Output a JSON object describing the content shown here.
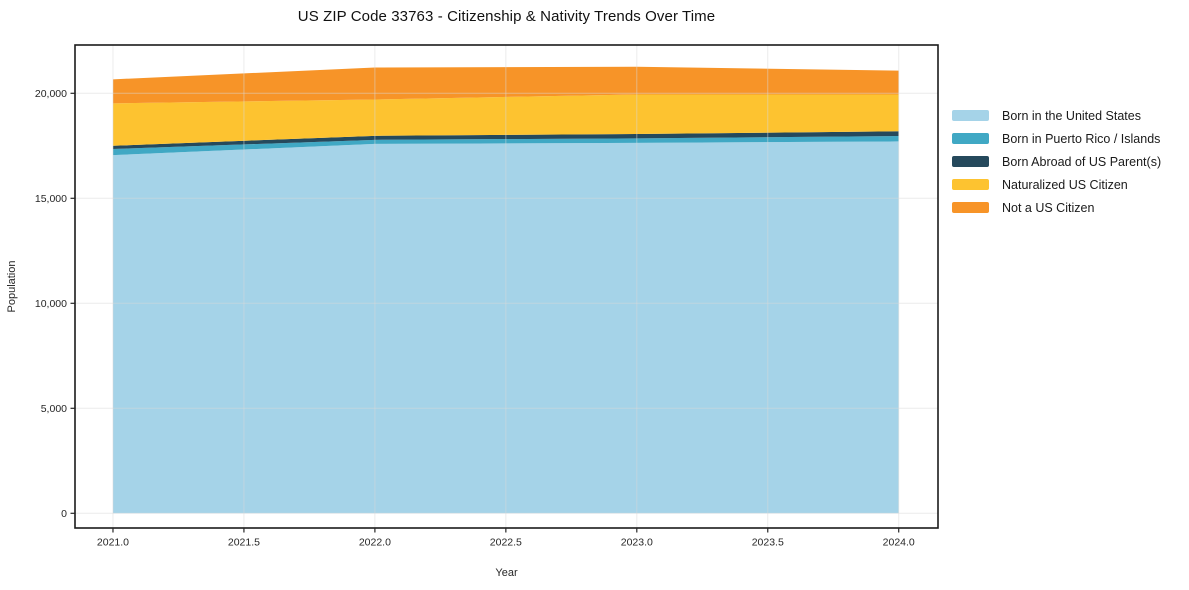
{
  "chart_data": {
    "type": "area",
    "stacked": true,
    "title": "US ZIP Code 33763 - Citizenship & Nativity Trends Over Time",
    "xlabel": "Year",
    "ylabel": "Population",
    "x": [
      2021,
      2022,
      2023,
      2024
    ],
    "series": [
      {
        "name": "Born in the United States",
        "color": "#a5d3e8",
        "values": [
          17055,
          17590,
          17640,
          17710
        ]
      },
      {
        "name": "Born in Puerto Rico / Islands",
        "color": "#40a8c4",
        "values": [
          290,
          195,
          215,
          255
        ]
      },
      {
        "name": "Born Abroad of US Parent(s)",
        "color": "#25495c",
        "values": [
          155,
          190,
          205,
          225
        ]
      },
      {
        "name": "Naturalized US Citizen",
        "color": "#fdc330",
        "values": [
          2020,
          1730,
          1885,
          1755
        ]
      },
      {
        "name": "Not a US Citizen",
        "color": "#f79428",
        "values": [
          1145,
          1525,
          1320,
          1135
        ]
      }
    ],
    "stack_totals": [
      20665,
      21230,
      21265,
      21080
    ],
    "xlim": [
      2020.855,
      2024.15
    ],
    "ylim": [
      -700,
      22300
    ],
    "x_ticks": [
      {
        "v": 2021.0,
        "label": "2021.0"
      },
      {
        "v": 2021.5,
        "label": "2021.5"
      },
      {
        "v": 2022.0,
        "label": "2022.0"
      },
      {
        "v": 2022.5,
        "label": "2022.5"
      },
      {
        "v": 2023.0,
        "label": "2023.0"
      },
      {
        "v": 2023.5,
        "label": "2023.5"
      },
      {
        "v": 2024.0,
        "label": "2024.0"
      }
    ],
    "y_ticks": [
      {
        "v": 0,
        "label": "0"
      },
      {
        "v": 5000,
        "label": "5,000"
      },
      {
        "v": 10000,
        "label": "10,000"
      },
      {
        "v": 15000,
        "label": "15,000"
      },
      {
        "v": 20000,
        "label": "20,000"
      }
    ],
    "grid": true,
    "legend_position": "right-outside"
  },
  "style": {
    "grid_color": "#d9d9d9",
    "spine_color": "#1a1a1a",
    "tick_text_color": "#262626",
    "background": "#ffffff"
  }
}
